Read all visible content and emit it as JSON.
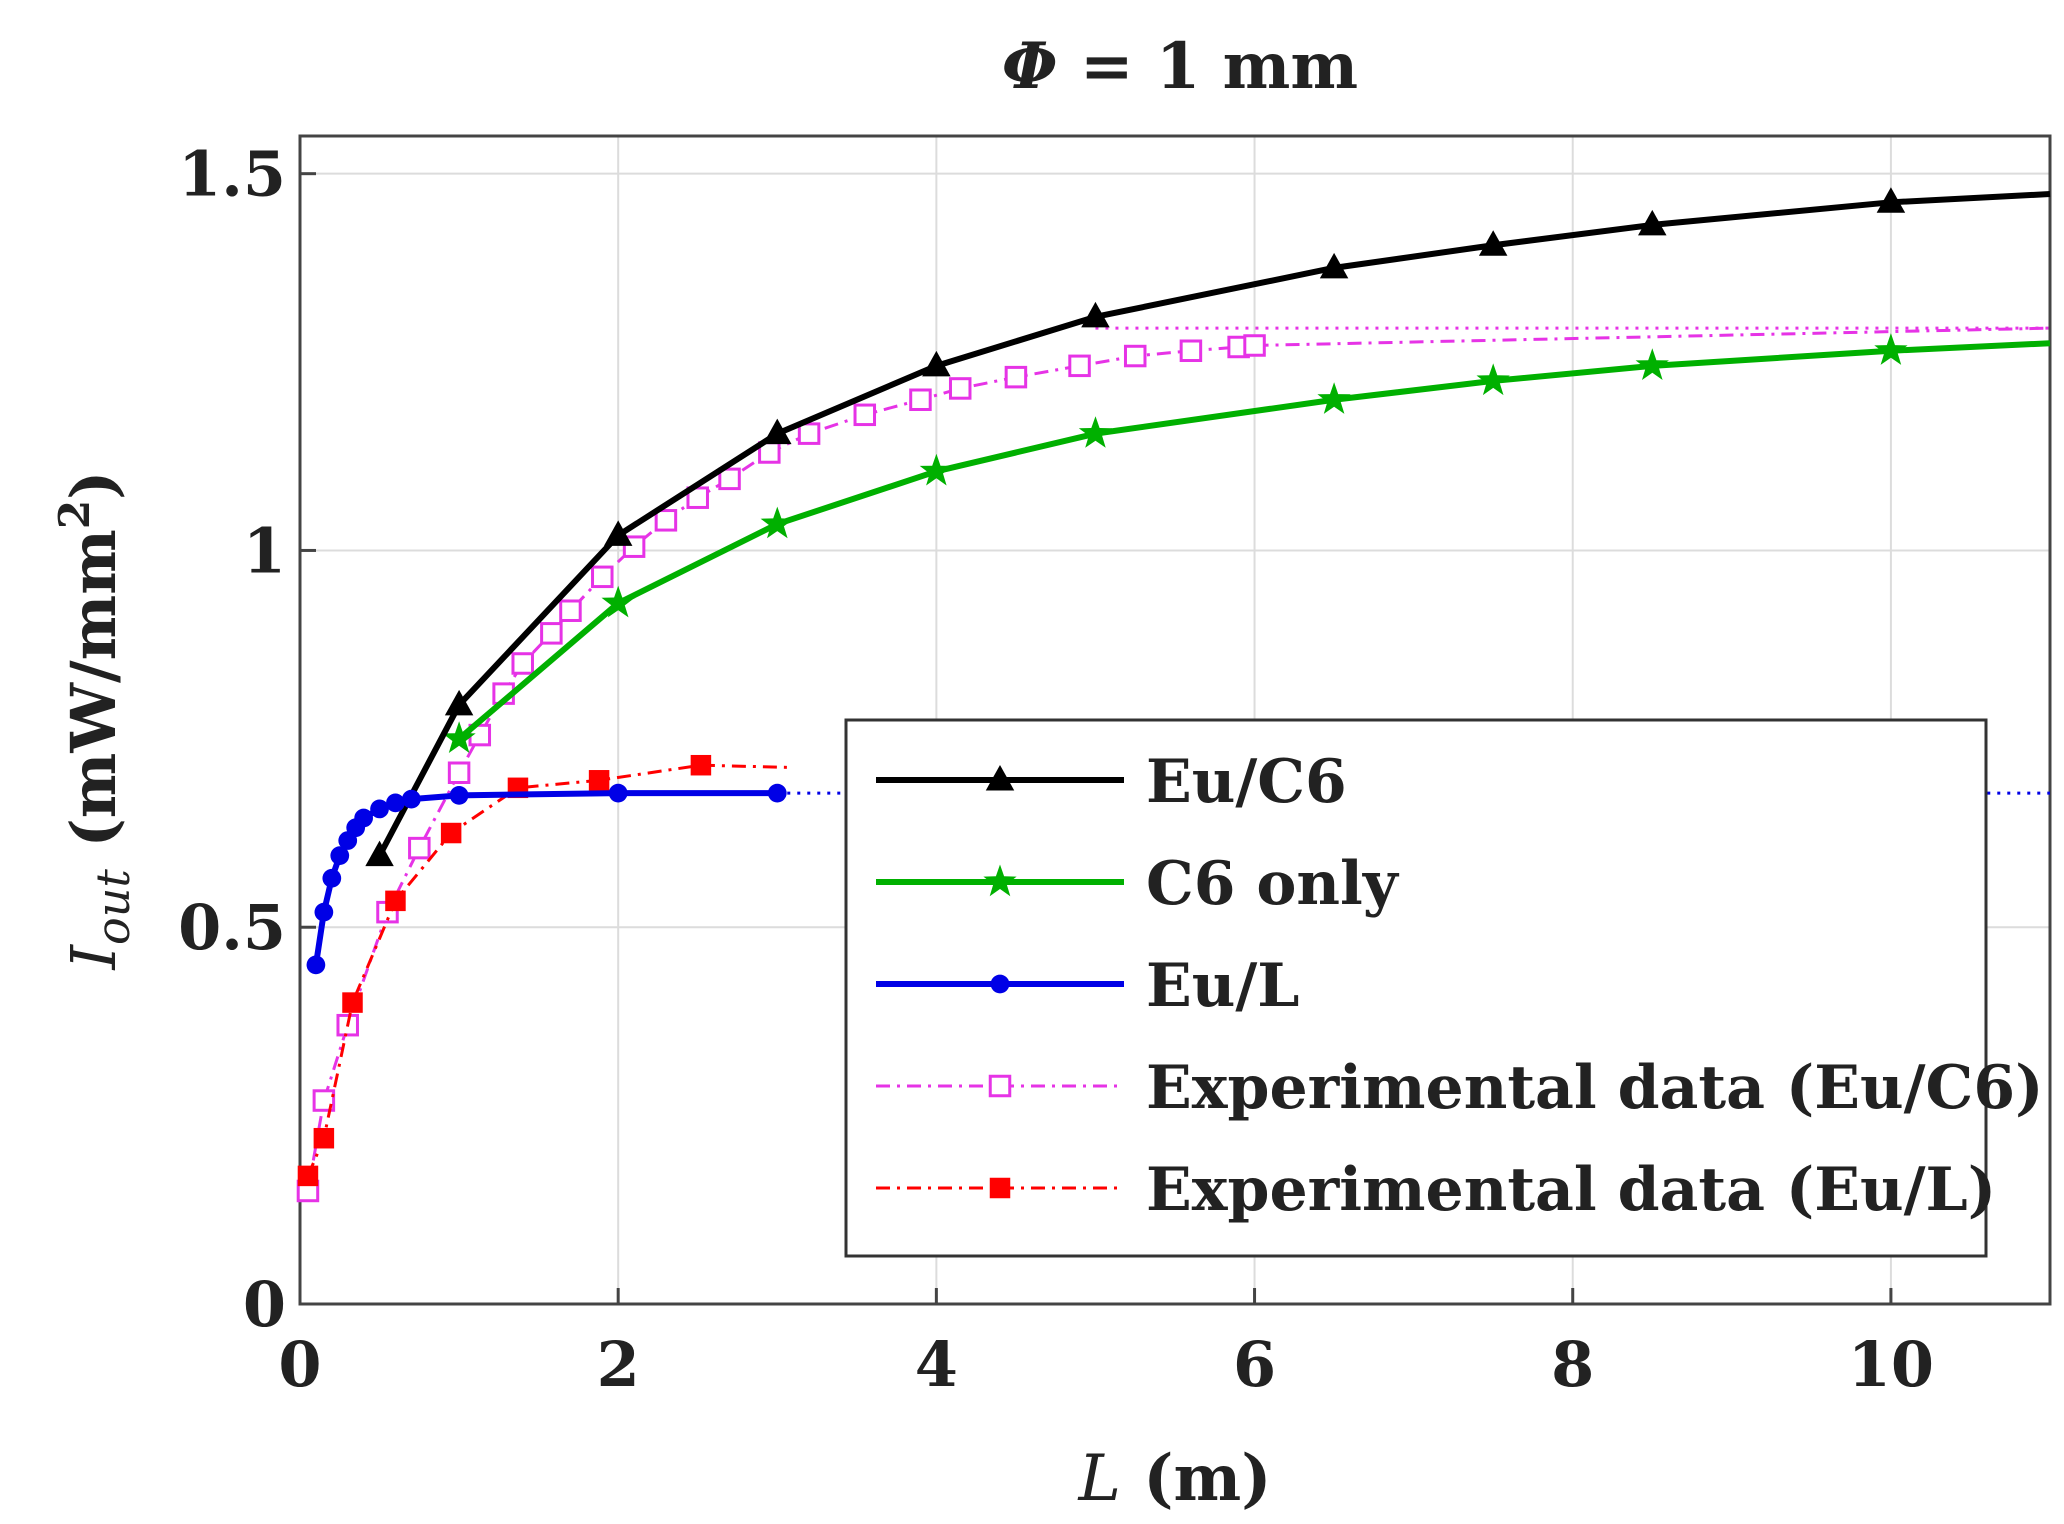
{
  "chart_data": {
    "type": "line",
    "title_symbol": "Φ",
    "title_rest": " = 1 mm",
    "xlabel_symbol": "L",
    "xlabel_unit": " (m)",
    "ylabel_symbol": "I",
    "ylabel_subscript": "out",
    "ylabel_unit": " (mW/mm",
    "ylabel_exp": "2",
    "ylabel_close": ")",
    "xlim": [
      0,
      11
    ],
    "ylim": [
      0,
      1.55
    ],
    "xticks": [
      0,
      2,
      4,
      6,
      8,
      10
    ],
    "xtick_labels": [
      "0",
      "2",
      "4",
      "6",
      "8",
      "10"
    ],
    "yticks": [
      0,
      0.5,
      1,
      1.5
    ],
    "ytick_labels": [
      "0",
      "0.5",
      "1",
      "1.5"
    ],
    "grid": true,
    "legend_position": "center-right",
    "series": [
      {
        "name": "Eu/C6",
        "color": "#000000",
        "style": "solid",
        "marker": "triangle",
        "marker_filled": true,
        "x": [
          0.5,
          1,
          2,
          3,
          4,
          5,
          6.5,
          7.5,
          8.5,
          10,
          11
        ],
        "y": [
          0.595,
          0.795,
          1.02,
          1.155,
          1.245,
          1.31,
          1.375,
          1.405,
          1.432,
          1.462,
          1.473
        ],
        "marker_x": [
          0.5,
          1,
          2,
          3,
          4,
          5,
          6.5,
          7.5,
          8.5,
          10
        ]
      },
      {
        "name": "C6 only",
        "color": "#00b000",
        "style": "solid",
        "marker": "star",
        "marker_filled": true,
        "x": [
          1,
          2,
          3,
          4,
          5,
          6.5,
          7.5,
          8.5,
          10,
          11
        ],
        "y": [
          0.75,
          0.93,
          1.035,
          1.105,
          1.155,
          1.2,
          1.225,
          1.245,
          1.265,
          1.275
        ],
        "marker_x": [
          1,
          2,
          3,
          4,
          5,
          6.5,
          7.5,
          8.5,
          10
        ]
      },
      {
        "name": "Eu/L",
        "color": "#0000e6",
        "style": "solid",
        "marker": "circle",
        "marker_filled": true,
        "x": [
          0.1,
          0.15,
          0.2,
          0.25,
          0.3,
          0.35,
          0.4,
          0.5,
          0.6,
          0.7,
          1,
          2,
          3
        ],
        "y": [
          0.45,
          0.52,
          0.565,
          0.595,
          0.615,
          0.632,
          0.645,
          0.657,
          0.665,
          0.67,
          0.675,
          0.678,
          0.678
        ],
        "extension": {
          "x": [
            3,
            11
          ],
          "y": [
            0.678,
            0.678
          ],
          "style": "dotted"
        }
      },
      {
        "name": "Experimental data (Eu/C6)",
        "color": "#e633e6",
        "style": "dashdot",
        "marker": "square",
        "marker_filled": false,
        "x": [
          0.05,
          0.15,
          0.3,
          0.55,
          0.75,
          1,
          1.13,
          1.28,
          1.4,
          1.58,
          1.7,
          1.9,
          2.1,
          2.3,
          2.5,
          2.7,
          2.95,
          3.2,
          3.55,
          3.9,
          4.15,
          4.5,
          4.9,
          5.25,
          5.6,
          5.9,
          6
        ],
        "y": [
          0.15,
          0.27,
          0.37,
          0.52,
          0.605,
          0.705,
          0.755,
          0.81,
          0.85,
          0.89,
          0.92,
          0.965,
          1.005,
          1.04,
          1.07,
          1.095,
          1.13,
          1.155,
          1.18,
          1.2,
          1.215,
          1.23,
          1.245,
          1.258,
          1.265,
          1.27,
          1.272
        ],
        "extension": {
          "x": [
            6,
            11
          ],
          "y": [
            1.272,
            1.295
          ],
          "style": "dashdot"
        },
        "asymptote": {
          "x": [
            5,
            11
          ],
          "y": [
            1.295,
            1.295
          ],
          "style": "dotted"
        }
      },
      {
        "name": "Experimental data (Eu/L)",
        "color": "#ff0000",
        "style": "dashdot",
        "marker": "square",
        "marker_filled": true,
        "x": [
          0.05,
          0.15,
          0.33,
          0.6,
          0.95,
          1.37,
          1.88,
          2.52
        ],
        "y": [
          0.17,
          0.22,
          0.4,
          0.535,
          0.625,
          0.685,
          0.695,
          0.715
        ],
        "extension": {
          "x": [
            2.52,
            3.1
          ],
          "y": [
            0.715,
            0.712
          ],
          "style": "dashdot"
        }
      }
    ]
  }
}
